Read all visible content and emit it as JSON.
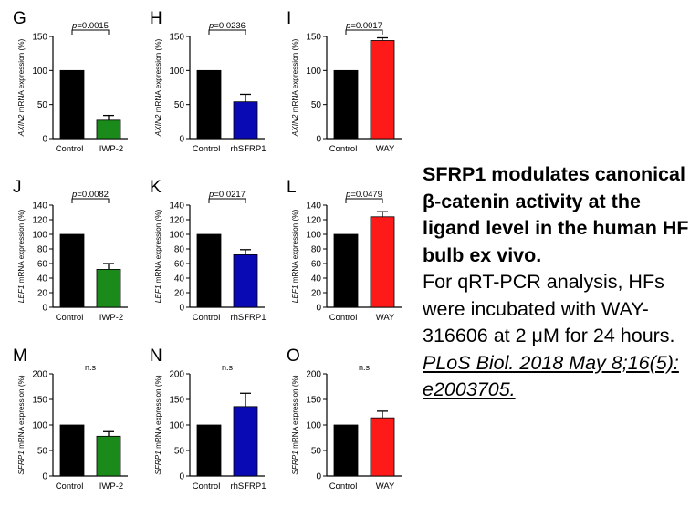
{
  "chart_data": [
    {
      "type": "bar",
      "letter": "G",
      "ylabel_gene": "AXIN2",
      "ylabel_rest": " mRNA expression (%)",
      "ylim": [
        0,
        150
      ],
      "yticks": [
        0,
        50,
        100,
        150
      ],
      "categories": [
        "Control",
        "IWP-2"
      ],
      "values": [
        100,
        27
      ],
      "errors": [
        0,
        7
      ],
      "colors": [
        "#000000",
        "#1a8a1a"
      ],
      "stat": "p=0.0015"
    },
    {
      "type": "bar",
      "letter": "H",
      "ylabel_gene": "AXIN2",
      "ylabel_rest": " mRNA expression (%)",
      "ylim": [
        0,
        150
      ],
      "yticks": [
        0,
        50,
        100,
        150
      ],
      "categories": [
        "Control",
        "rhSFRP1"
      ],
      "values": [
        100,
        54
      ],
      "errors": [
        0,
        11
      ],
      "colors": [
        "#000000",
        "#0a0ab4"
      ],
      "stat": "p=0.0236"
    },
    {
      "type": "bar",
      "letter": "I",
      "ylabel_gene": "AXIN2",
      "ylabel_rest": " mRNA expression (%)",
      "ylim": [
        0,
        150
      ],
      "yticks": [
        0,
        50,
        100,
        150
      ],
      "categories": [
        "Control",
        "WAY"
      ],
      "values": [
        100,
        144
      ],
      "errors": [
        0,
        4
      ],
      "colors": [
        "#000000",
        "#ff1a1a"
      ],
      "stat": "p=0.0017"
    },
    {
      "type": "bar",
      "letter": "J",
      "ylabel_gene": "LEF1",
      "ylabel_rest": " mRNA expression (%)",
      "ylim": [
        0,
        140
      ],
      "yticks": [
        0,
        20,
        40,
        60,
        80,
        100,
        120,
        140
      ],
      "categories": [
        "Control",
        "IWP-2"
      ],
      "values": [
        100,
        52
      ],
      "errors": [
        0,
        8
      ],
      "colors": [
        "#000000",
        "#1a8a1a"
      ],
      "stat": "p=0.0082"
    },
    {
      "type": "bar",
      "letter": "K",
      "ylabel_gene": "LEF1",
      "ylabel_rest": " mRNA expression (%)",
      "ylim": [
        0,
        140
      ],
      "yticks": [
        0,
        20,
        40,
        60,
        80,
        100,
        120,
        140
      ],
      "categories": [
        "Control",
        "rhSFRP1"
      ],
      "values": [
        100,
        72
      ],
      "errors": [
        0,
        7
      ],
      "colors": [
        "#000000",
        "#0a0ab4"
      ],
      "stat": "p=0.0217"
    },
    {
      "type": "bar",
      "letter": "L",
      "ylabel_gene": "LEF1",
      "ylabel_rest": " mRNA expression (%)",
      "ylim": [
        0,
        140
      ],
      "yticks": [
        0,
        20,
        40,
        60,
        80,
        100,
        120,
        140
      ],
      "categories": [
        "Control",
        "WAY"
      ],
      "values": [
        100,
        124
      ],
      "errors": [
        0,
        7
      ],
      "colors": [
        "#000000",
        "#ff1a1a"
      ],
      "stat": "p=0.0479"
    },
    {
      "type": "bar",
      "letter": "M",
      "ylabel_gene": "SFRP1",
      "ylabel_rest": " mRNA expression (%)",
      "ylim": [
        0,
        200
      ],
      "yticks": [
        0,
        50,
        100,
        150,
        200
      ],
      "categories": [
        "Control",
        "IWP-2"
      ],
      "values": [
        100,
        78
      ],
      "errors": [
        0,
        9
      ],
      "colors": [
        "#000000",
        "#1a8a1a"
      ],
      "stat": "n.s"
    },
    {
      "type": "bar",
      "letter": "N",
      "ylabel_gene": "SFRP1",
      "ylabel_rest": " mRNA expression (%)",
      "ylim": [
        0,
        200
      ],
      "yticks": [
        0,
        50,
        100,
        150,
        200
      ],
      "categories": [
        "Control",
        "rhSFRP1"
      ],
      "values": [
        100,
        136
      ],
      "errors": [
        0,
        26
      ],
      "colors": [
        "#000000",
        "#0a0ab4"
      ],
      "stat": "n.s"
    },
    {
      "type": "bar",
      "letter": "O",
      "ylabel_gene": "SFRP1",
      "ylabel_rest": " mRNA expression (%)",
      "ylim": [
        0,
        200
      ],
      "yticks": [
        0,
        50,
        100,
        150,
        200
      ],
      "categories": [
        "Control",
        "WAY"
      ],
      "values": [
        100,
        114
      ],
      "errors": [
        0,
        13
      ],
      "colors": [
        "#000000",
        "#ff1a1a"
      ],
      "stat": "n.s"
    }
  ],
  "caption": {
    "title": "SFRP1 modulates canonical β-catenin activity at the ligand level in the human HF bulb ex vivo.",
    "body": "For qRT-PCR analysis, HFs were incubated with WAY-316606 at 2 μM for 24 hours. ",
    "citation": "PLoS Biol. 2018 May 8;16(5): e2003705."
  }
}
